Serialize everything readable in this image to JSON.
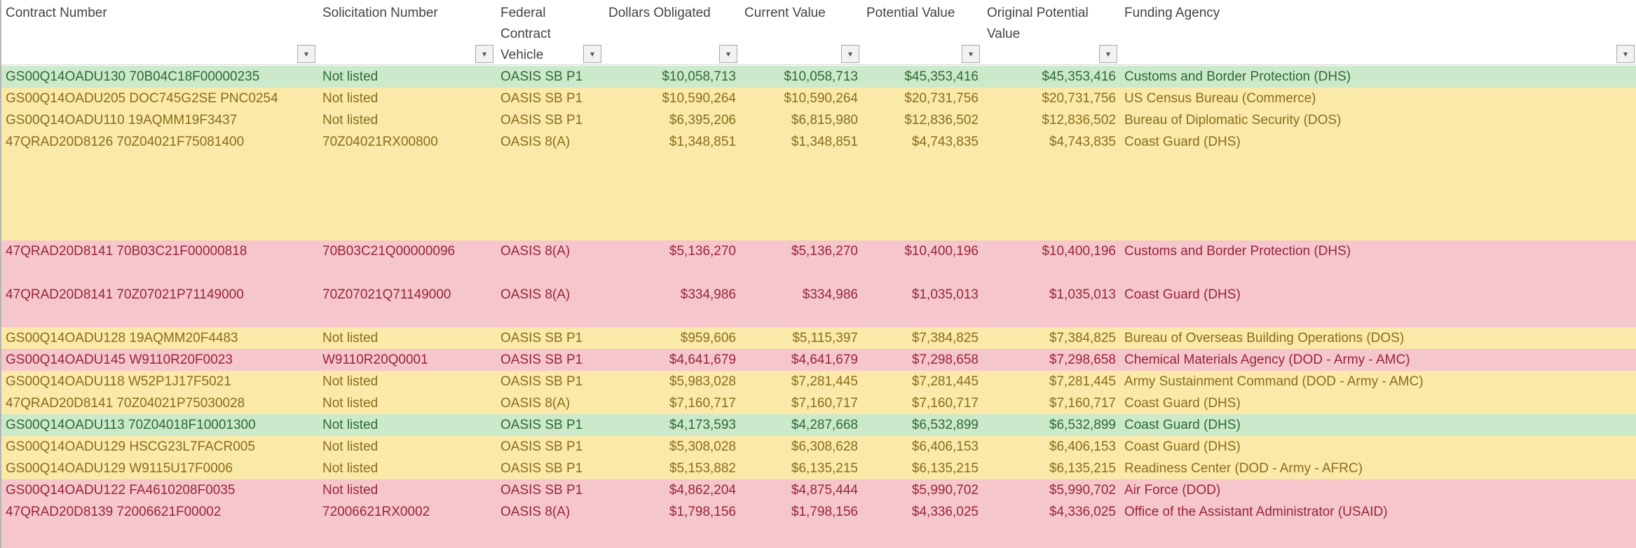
{
  "columns": [
    {
      "key": "contract",
      "label": "Contract Number"
    },
    {
      "key": "solicitation",
      "label": "Solicitation Number"
    },
    {
      "key": "vehicle",
      "label": "Federal Contract Vehicle"
    },
    {
      "key": "obligated",
      "label": "Dollars Obligated"
    },
    {
      "key": "current",
      "label": "Current Value"
    },
    {
      "key": "potential",
      "label": "Potential Value"
    },
    {
      "key": "original",
      "label": "Original Potential Value"
    },
    {
      "key": "agency",
      "label": "Funding Agency"
    }
  ],
  "filter_glyph": "▾",
  "rows": [
    {
      "status": "green",
      "contract": "GS00Q14OADU130  70B04C18F00000235",
      "solicitation": "Not listed",
      "vehicle": "OASIS SB P1",
      "obligated": "$10,058,713",
      "current": "$10,058,713",
      "potential": "$45,353,416",
      "original": "$45,353,416",
      "agency": "Customs and Border Protection (DHS)"
    },
    {
      "status": "yellow",
      "contract": "GS00Q14OADU205  DOC745G2SE PNC0254",
      "solicitation": "Not listed",
      "vehicle": "OASIS SB P1",
      "obligated": "$10,590,264",
      "current": "$10,590,264",
      "potential": "$20,731,756",
      "original": "$20,731,756",
      "agency": "US Census Bureau (Commerce)"
    },
    {
      "status": "yellow",
      "contract": "GS00Q14OADU110  19AQMM19F3437",
      "solicitation": "Not listed",
      "vehicle": "OASIS SB P1",
      "obligated": "$6,395,206",
      "current": "$6,815,980",
      "potential": "$12,836,502",
      "original": "$12,836,502",
      "agency": "Bureau of Diplomatic Security (DOS)"
    },
    {
      "status": "yellow",
      "contract": "47QRAD20D8126  70Z04021F75081400",
      "solicitation": "70Z04021RX00800",
      "vehicle": "OASIS 8(A)",
      "obligated": "$1,348,851",
      "current": "$1,348,851",
      "potential": "$4,743,835",
      "original": "$4,743,835",
      "agency": "Coast Guard (DHS)"
    },
    {
      "status": "red",
      "contract": "47QRAD20D8141  70B03C21F00000818",
      "solicitation": "70B03C21Q00000096",
      "vehicle": "OASIS 8(A)",
      "obligated": "$5,136,270",
      "current": "$5,136,270",
      "potential": "$10,400,196",
      "original": "$10,400,196",
      "agency": "Customs and Border Protection (DHS)"
    },
    {
      "status": "red",
      "contract": "47QRAD20D8141  70Z07021P71149000",
      "solicitation": "70Z07021Q71149000",
      "vehicle": "OASIS 8(A)",
      "obligated": "$334,986",
      "current": "$334,986",
      "potential": "$1,035,013",
      "original": "$1,035,013",
      "agency": "Coast Guard (DHS)"
    },
    {
      "status": "yellow",
      "contract": "GS00Q14OADU128  19AQMM20F4483",
      "solicitation": "Not listed",
      "vehicle": "OASIS SB P1",
      "obligated": "$959,606",
      "current": "$5,115,397",
      "potential": "$7,384,825",
      "original": "$7,384,825",
      "agency": "Bureau of Overseas Building Operations (DOS)"
    },
    {
      "status": "red",
      "contract": "GS00Q14OADU145  W9110R20F0023",
      "solicitation": "W9110R20Q0001",
      "vehicle": "OASIS SB P1",
      "obligated": "$4,641,679",
      "current": "$4,641,679",
      "potential": "$7,298,658",
      "original": "$7,298,658",
      "agency": "Chemical Materials Agency (DOD - Army - AMC)"
    },
    {
      "status": "yellow",
      "contract": "GS00Q14OADU118  W52P1J17F5021",
      "solicitation": "Not listed",
      "vehicle": "OASIS SB P1",
      "obligated": "$5,983,028",
      "current": "$7,281,445",
      "potential": "$7,281,445",
      "original": "$7,281,445",
      "agency": "Army Sustainment Command (DOD - Army - AMC)"
    },
    {
      "status": "yellow",
      "contract": "47QRAD20D8141  70Z04021P75030028",
      "solicitation": "Not listed",
      "vehicle": "OASIS 8(A)",
      "obligated": "$7,160,717",
      "current": "$7,160,717",
      "potential": "$7,160,717",
      "original": "$7,160,717",
      "agency": "Coast Guard (DHS)"
    },
    {
      "status": "green",
      "contract": "GS00Q14OADU113  70Z04018F10001300",
      "solicitation": "Not listed",
      "vehicle": "OASIS SB P1",
      "obligated": "$4,173,593",
      "current": "$4,287,668",
      "potential": "$6,532,899",
      "original": "$6,532,899",
      "agency": "Coast Guard (DHS)"
    },
    {
      "status": "yellow",
      "contract": "GS00Q14OADU129  HSCG23L7FACR005",
      "solicitation": "Not listed",
      "vehicle": "OASIS SB P1",
      "obligated": "$5,308,028",
      "current": "$6,308,628",
      "potential": "$6,406,153",
      "original": "$6,406,153",
      "agency": "Coast Guard (DHS)"
    },
    {
      "status": "yellow",
      "contract": "GS00Q14OADU129  W9115U17F0006",
      "solicitation": "Not listed",
      "vehicle": "OASIS SB P1",
      "obligated": "$5,153,882",
      "current": "$6,135,215",
      "potential": "$6,135,215",
      "original": "$6,135,215",
      "agency": "Readiness Center (DOD - Army - AFRC)"
    },
    {
      "status": "red",
      "contract": "GS00Q14OADU122  FA4610208F0035",
      "solicitation": "Not listed",
      "vehicle": "OASIS SB P1",
      "obligated": "$4,862,204",
      "current": "$4,875,444",
      "potential": "$5,990,702",
      "original": "$5,990,702",
      "agency": "Air Force (DOD)"
    },
    {
      "status": "red",
      "contract": "47QRAD20D8139  72006621F00002",
      "solicitation": "72006621RX0002",
      "vehicle": "OASIS 8(A)",
      "obligated": "$1,798,156",
      "current": "$1,798,156",
      "potential": "$4,336,025",
      "original": "$4,336,025",
      "agency": "Office of the Assistant Administrator (USAID)"
    }
  ]
}
